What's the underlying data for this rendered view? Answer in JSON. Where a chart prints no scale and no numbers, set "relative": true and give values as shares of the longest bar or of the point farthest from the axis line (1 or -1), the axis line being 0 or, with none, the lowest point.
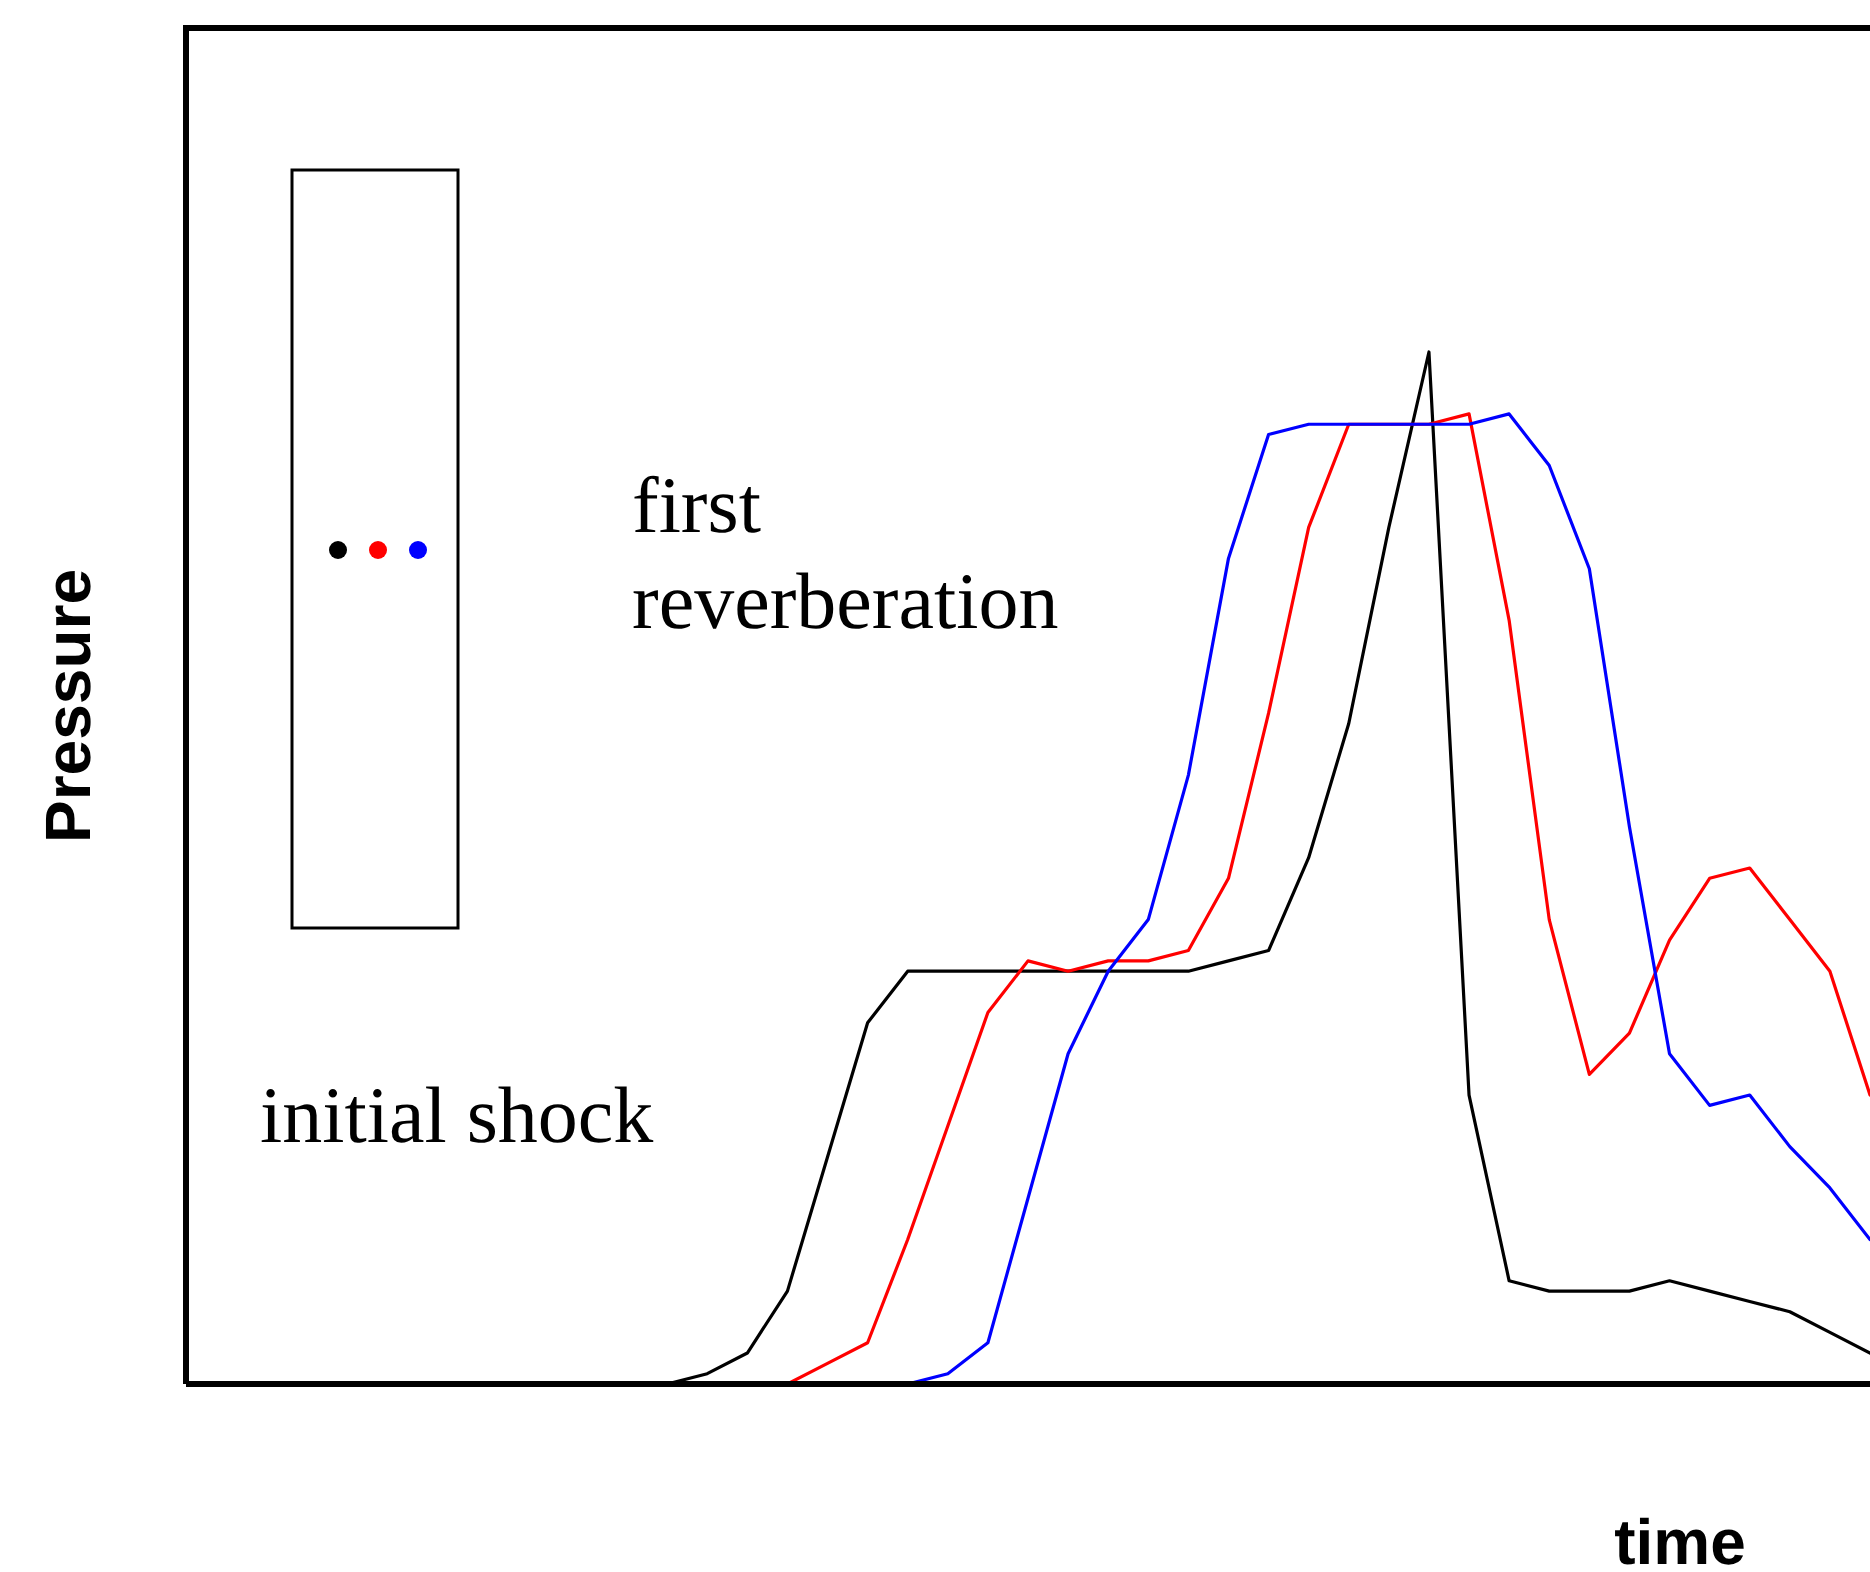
{
  "chart_data": {
    "type": "line",
    "relative": true,
    "xlabel": "time",
    "ylabel": "Pressure",
    "marker": "none",
    "line_style": "solid",
    "annotations": [
      "first reverberation",
      "initial shock"
    ],
    "categories": [
      null,
      null,
      null,
      null,
      null,
      null,
      null,
      null,
      null,
      null,
      null,
      null,
      null,
      null,
      null,
      null,
      null,
      null,
      null,
      null,
      null,
      null,
      null,
      null,
      null,
      null,
      null,
      null,
      null,
      null,
      null,
      null,
      null,
      null,
      null,
      null,
      null,
      null,
      null,
      null,
      null,
      null,
      null
    ],
    "series": [
      {
        "color": "#000000",
        "values": [
          0,
          0,
          0,
          0,
          0,
          0,
          0,
          0,
          0,
          0,
          0,
          0,
          0,
          0.01,
          0.03,
          0.09,
          0.22,
          0.35,
          0.4,
          0.4,
          0.4,
          0.4,
          0.4,
          0.4,
          0.4,
          0.4,
          0.41,
          0.42,
          0.51,
          0.64,
          0.83,
          1,
          0.28,
          0.1,
          0.09,
          0.09,
          0.09,
          0.1,
          0.09,
          0.08,
          0.07,
          0.05,
          0.03
        ]
      },
      {
        "color": "#ff0000",
        "values": [
          null,
          null,
          null,
          null,
          null,
          null,
          null,
          null,
          null,
          null,
          null,
          null,
          null,
          null,
          0,
          0,
          0.02,
          0.04,
          0.14,
          0.25,
          0.36,
          0.41,
          0.4,
          0.41,
          0.41,
          0.42,
          0.49,
          0.65,
          0.83,
          0.93,
          0.93,
          0.93,
          0.94,
          0.74,
          0.45,
          0.3,
          0.34,
          0.43,
          0.49,
          0.5,
          0.45,
          0.4,
          0.28
        ]
      },
      {
        "color": "#0000ff",
        "values": [
          null,
          null,
          null,
          null,
          null,
          null,
          null,
          null,
          null,
          null,
          null,
          null,
          null,
          null,
          null,
          null,
          null,
          0,
          0,
          0.01,
          0.04,
          0.18,
          0.32,
          0.4,
          0.45,
          0.59,
          0.8,
          0.92,
          0.93,
          0.93,
          0.93,
          0.93,
          0.93,
          0.94,
          0.89,
          0.79,
          0.54,
          0.32,
          0.27,
          0.28,
          0.23,
          0.19,
          0.14
        ]
      }
    ]
  }
}
